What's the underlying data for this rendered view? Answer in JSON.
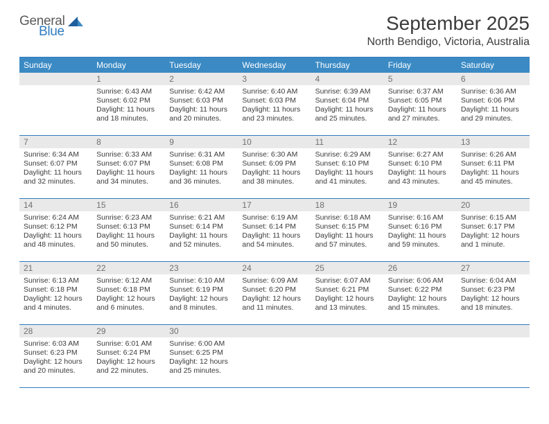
{
  "brand": {
    "general": "General",
    "blue": "Blue"
  },
  "title": "September 2025",
  "location": "North Bendigo, Victoria, Australia",
  "colors": {
    "header_bg": "#3b8ac4",
    "border": "#2f7bbf",
    "daynum_bg": "#e9e9e9",
    "text": "#3b3b3b",
    "logo_blue": "#2f7bbf",
    "logo_gray": "#5a5a5a"
  },
  "dow": [
    "Sunday",
    "Monday",
    "Tuesday",
    "Wednesday",
    "Thursday",
    "Friday",
    "Saturday"
  ],
  "weeks": [
    [
      {
        "n": "",
        "sr": "",
        "ss": "",
        "dl": ""
      },
      {
        "n": "1",
        "sr": "Sunrise: 6:43 AM",
        "ss": "Sunset: 6:02 PM",
        "dl": "Daylight: 11 hours and 18 minutes."
      },
      {
        "n": "2",
        "sr": "Sunrise: 6:42 AM",
        "ss": "Sunset: 6:03 PM",
        "dl": "Daylight: 11 hours and 20 minutes."
      },
      {
        "n": "3",
        "sr": "Sunrise: 6:40 AM",
        "ss": "Sunset: 6:03 PM",
        "dl": "Daylight: 11 hours and 23 minutes."
      },
      {
        "n": "4",
        "sr": "Sunrise: 6:39 AM",
        "ss": "Sunset: 6:04 PM",
        "dl": "Daylight: 11 hours and 25 minutes."
      },
      {
        "n": "5",
        "sr": "Sunrise: 6:37 AM",
        "ss": "Sunset: 6:05 PM",
        "dl": "Daylight: 11 hours and 27 minutes."
      },
      {
        "n": "6",
        "sr": "Sunrise: 6:36 AM",
        "ss": "Sunset: 6:06 PM",
        "dl": "Daylight: 11 hours and 29 minutes."
      }
    ],
    [
      {
        "n": "7",
        "sr": "Sunrise: 6:34 AM",
        "ss": "Sunset: 6:07 PM",
        "dl": "Daylight: 11 hours and 32 minutes."
      },
      {
        "n": "8",
        "sr": "Sunrise: 6:33 AM",
        "ss": "Sunset: 6:07 PM",
        "dl": "Daylight: 11 hours and 34 minutes."
      },
      {
        "n": "9",
        "sr": "Sunrise: 6:31 AM",
        "ss": "Sunset: 6:08 PM",
        "dl": "Daylight: 11 hours and 36 minutes."
      },
      {
        "n": "10",
        "sr": "Sunrise: 6:30 AM",
        "ss": "Sunset: 6:09 PM",
        "dl": "Daylight: 11 hours and 38 minutes."
      },
      {
        "n": "11",
        "sr": "Sunrise: 6:29 AM",
        "ss": "Sunset: 6:10 PM",
        "dl": "Daylight: 11 hours and 41 minutes."
      },
      {
        "n": "12",
        "sr": "Sunrise: 6:27 AM",
        "ss": "Sunset: 6:10 PM",
        "dl": "Daylight: 11 hours and 43 minutes."
      },
      {
        "n": "13",
        "sr": "Sunrise: 6:26 AM",
        "ss": "Sunset: 6:11 PM",
        "dl": "Daylight: 11 hours and 45 minutes."
      }
    ],
    [
      {
        "n": "14",
        "sr": "Sunrise: 6:24 AM",
        "ss": "Sunset: 6:12 PM",
        "dl": "Daylight: 11 hours and 48 minutes."
      },
      {
        "n": "15",
        "sr": "Sunrise: 6:23 AM",
        "ss": "Sunset: 6:13 PM",
        "dl": "Daylight: 11 hours and 50 minutes."
      },
      {
        "n": "16",
        "sr": "Sunrise: 6:21 AM",
        "ss": "Sunset: 6:14 PM",
        "dl": "Daylight: 11 hours and 52 minutes."
      },
      {
        "n": "17",
        "sr": "Sunrise: 6:19 AM",
        "ss": "Sunset: 6:14 PM",
        "dl": "Daylight: 11 hours and 54 minutes."
      },
      {
        "n": "18",
        "sr": "Sunrise: 6:18 AM",
        "ss": "Sunset: 6:15 PM",
        "dl": "Daylight: 11 hours and 57 minutes."
      },
      {
        "n": "19",
        "sr": "Sunrise: 6:16 AM",
        "ss": "Sunset: 6:16 PM",
        "dl": "Daylight: 11 hours and 59 minutes."
      },
      {
        "n": "20",
        "sr": "Sunrise: 6:15 AM",
        "ss": "Sunset: 6:17 PM",
        "dl": "Daylight: 12 hours and 1 minute."
      }
    ],
    [
      {
        "n": "21",
        "sr": "Sunrise: 6:13 AM",
        "ss": "Sunset: 6:18 PM",
        "dl": "Daylight: 12 hours and 4 minutes."
      },
      {
        "n": "22",
        "sr": "Sunrise: 6:12 AM",
        "ss": "Sunset: 6:18 PM",
        "dl": "Daylight: 12 hours and 6 minutes."
      },
      {
        "n": "23",
        "sr": "Sunrise: 6:10 AM",
        "ss": "Sunset: 6:19 PM",
        "dl": "Daylight: 12 hours and 8 minutes."
      },
      {
        "n": "24",
        "sr": "Sunrise: 6:09 AM",
        "ss": "Sunset: 6:20 PM",
        "dl": "Daylight: 12 hours and 11 minutes."
      },
      {
        "n": "25",
        "sr": "Sunrise: 6:07 AM",
        "ss": "Sunset: 6:21 PM",
        "dl": "Daylight: 12 hours and 13 minutes."
      },
      {
        "n": "26",
        "sr": "Sunrise: 6:06 AM",
        "ss": "Sunset: 6:22 PM",
        "dl": "Daylight: 12 hours and 15 minutes."
      },
      {
        "n": "27",
        "sr": "Sunrise: 6:04 AM",
        "ss": "Sunset: 6:23 PM",
        "dl": "Daylight: 12 hours and 18 minutes."
      }
    ],
    [
      {
        "n": "28",
        "sr": "Sunrise: 6:03 AM",
        "ss": "Sunset: 6:23 PM",
        "dl": "Daylight: 12 hours and 20 minutes."
      },
      {
        "n": "29",
        "sr": "Sunrise: 6:01 AM",
        "ss": "Sunset: 6:24 PM",
        "dl": "Daylight: 12 hours and 22 minutes."
      },
      {
        "n": "30",
        "sr": "Sunrise: 6:00 AM",
        "ss": "Sunset: 6:25 PM",
        "dl": "Daylight: 12 hours and 25 minutes."
      },
      {
        "n": "",
        "sr": "",
        "ss": "",
        "dl": ""
      },
      {
        "n": "",
        "sr": "",
        "ss": "",
        "dl": ""
      },
      {
        "n": "",
        "sr": "",
        "ss": "",
        "dl": ""
      },
      {
        "n": "",
        "sr": "",
        "ss": "",
        "dl": ""
      }
    ]
  ]
}
